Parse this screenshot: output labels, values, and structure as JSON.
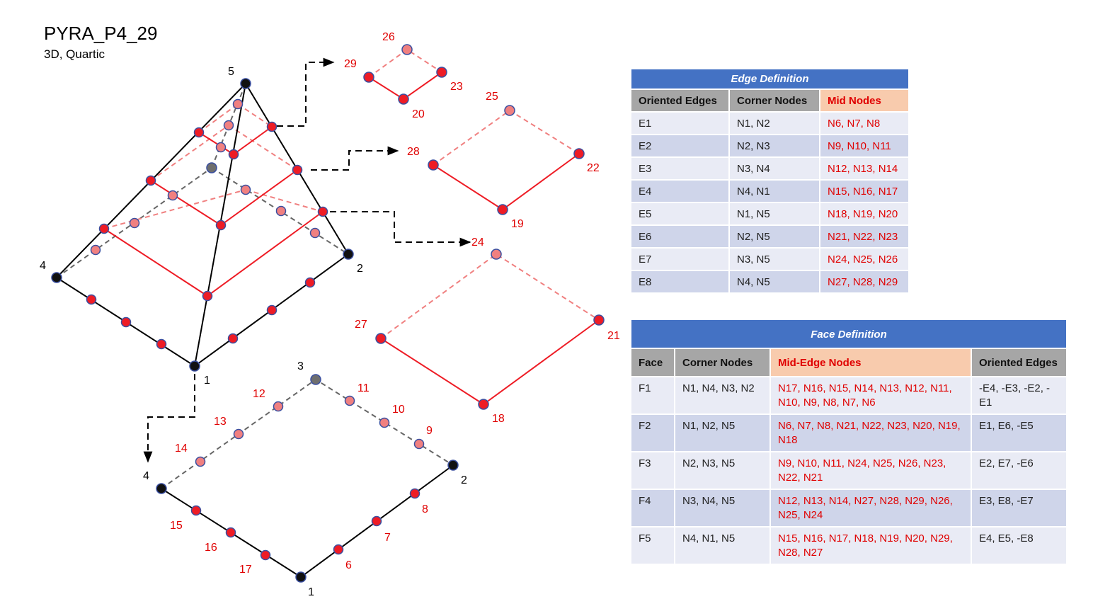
{
  "title": "PYRA_P4_29",
  "subtitle": "3D, Quartic",
  "colors": {
    "red_node": "#ee1c25",
    "pink_node": "#f08080",
    "corner_node": "#111111",
    "hidden_corner": "#6e6e6e",
    "node_outline": "#3a4fa0",
    "header_blue": "#4472C4"
  },
  "diagram_labels": {
    "pyramid": {
      "n1": "1",
      "n2": "2",
      "n4": "4",
      "n5": "5"
    },
    "base": {
      "n1": "1",
      "n2": "2",
      "n3": "3",
      "n4": "4",
      "n6": "6",
      "n7": "7",
      "n8": "8",
      "n9": "9",
      "n10": "10",
      "n11": "11",
      "n12": "12",
      "n13": "13",
      "n14": "14",
      "n15": "15",
      "n16": "16",
      "n17": "17"
    },
    "slice1": {
      "a": "18",
      "b": "21",
      "c": "24",
      "d": "27"
    },
    "slice2": {
      "a": "19",
      "b": "22",
      "c": "25",
      "d": "28"
    },
    "slice3": {
      "a": "20",
      "b": "23",
      "c": "26",
      "d": "29"
    }
  },
  "edge_table": {
    "caption": "Edge Definition",
    "headers": [
      "Oriented Edges",
      "Corner Nodes",
      "Mid Nodes"
    ],
    "rows": [
      [
        "E1",
        "N1, N2",
        "N6, N7, N8"
      ],
      [
        "E2",
        "N2, N3",
        "N9, N10, N11"
      ],
      [
        "E3",
        "N3, N4",
        "N12, N13, N14"
      ],
      [
        "E4",
        "N4, N1",
        "N15, N16, N17"
      ],
      [
        "E5",
        "N1, N5",
        "N18, N19, N20"
      ],
      [
        "E6",
        "N2, N5",
        "N21, N22, N23"
      ],
      [
        "E7",
        "N3, N5",
        "N24, N25, N26"
      ],
      [
        "E8",
        "N4, N5",
        "N27, N28, N29"
      ]
    ]
  },
  "face_table": {
    "caption": "Face Definition",
    "headers": [
      "Face",
      "Corner Nodes",
      "Mid-Edge Nodes",
      "Oriented Edges"
    ],
    "rows": [
      [
        "F1",
        "N1, N4, N3, N2",
        "N17, N16, N15, N14, N13, N12, N11, N10, N9, N8, N7, N6",
        "-E4, -E3, -E2, -E1"
      ],
      [
        "F2",
        "N1, N2, N5",
        "N6, N7, N8, N21, N22, N23, N20, N19, N18",
        "E1, E6, -E5"
      ],
      [
        "F3",
        "N2, N3, N5",
        "N9, N10, N11, N24, N25, N26, N23, N22, N21",
        "E2, E7, -E6"
      ],
      [
        "F4",
        "N3, N4, N5",
        "N12, N13, N14, N27, N28, N29, N26, N25, N24",
        "E3, E8, -E7"
      ],
      [
        "F5",
        "N4, N1, N5",
        "N15, N16, N17, N18, N19, N20, N29, N28, N27",
        "E4, E5, -E8"
      ]
    ]
  }
}
